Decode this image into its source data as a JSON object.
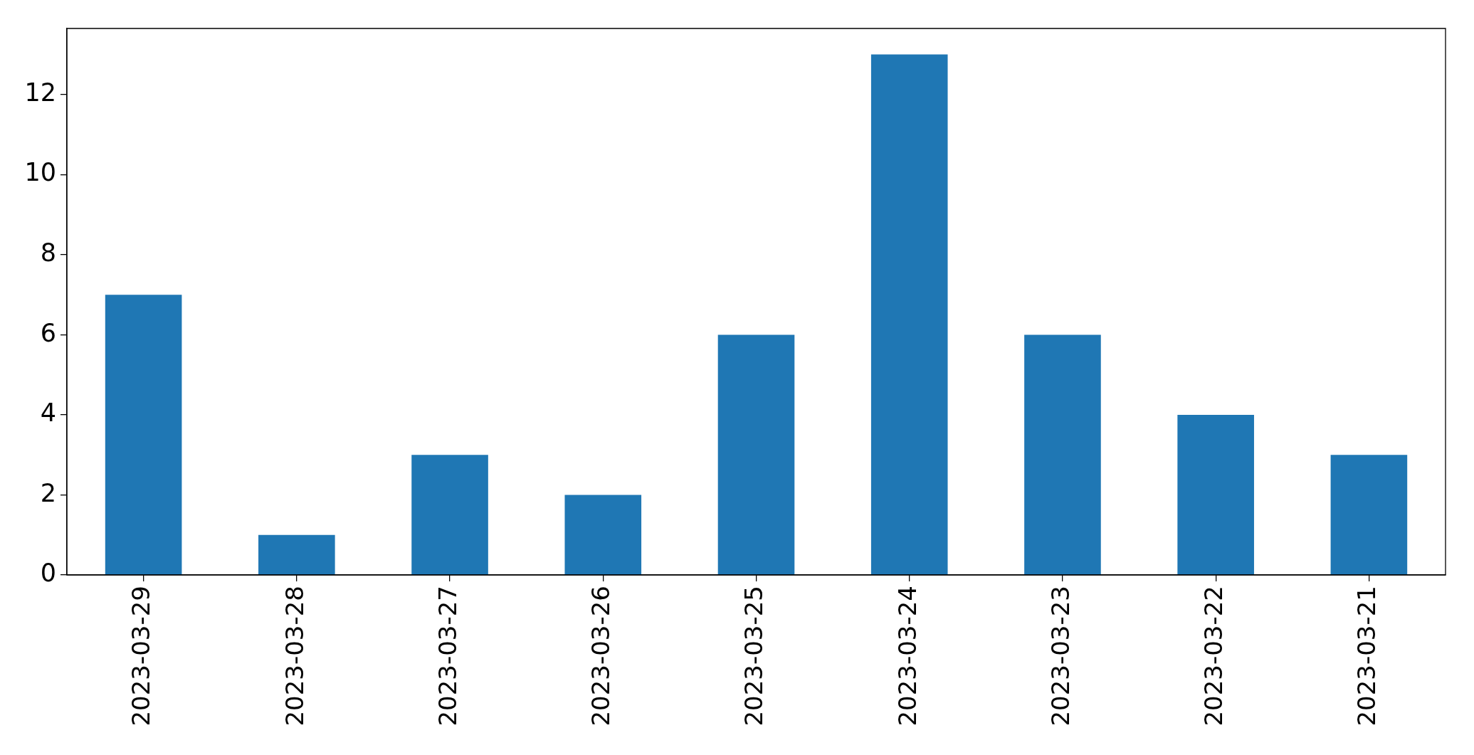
{
  "chart_data": {
    "type": "bar",
    "categories": [
      "2023-03-29",
      "2023-03-28",
      "2023-03-27",
      "2023-03-26",
      "2023-03-25",
      "2023-03-24",
      "2023-03-23",
      "2023-03-22",
      "2023-03-21"
    ],
    "values": [
      7,
      1,
      3,
      2,
      6,
      13,
      6,
      4,
      3
    ],
    "color": "#1f77b4",
    "ylim": [
      0,
      13.65
    ],
    "yticks": [
      0,
      2,
      4,
      6,
      8,
      10,
      12
    ]
  }
}
